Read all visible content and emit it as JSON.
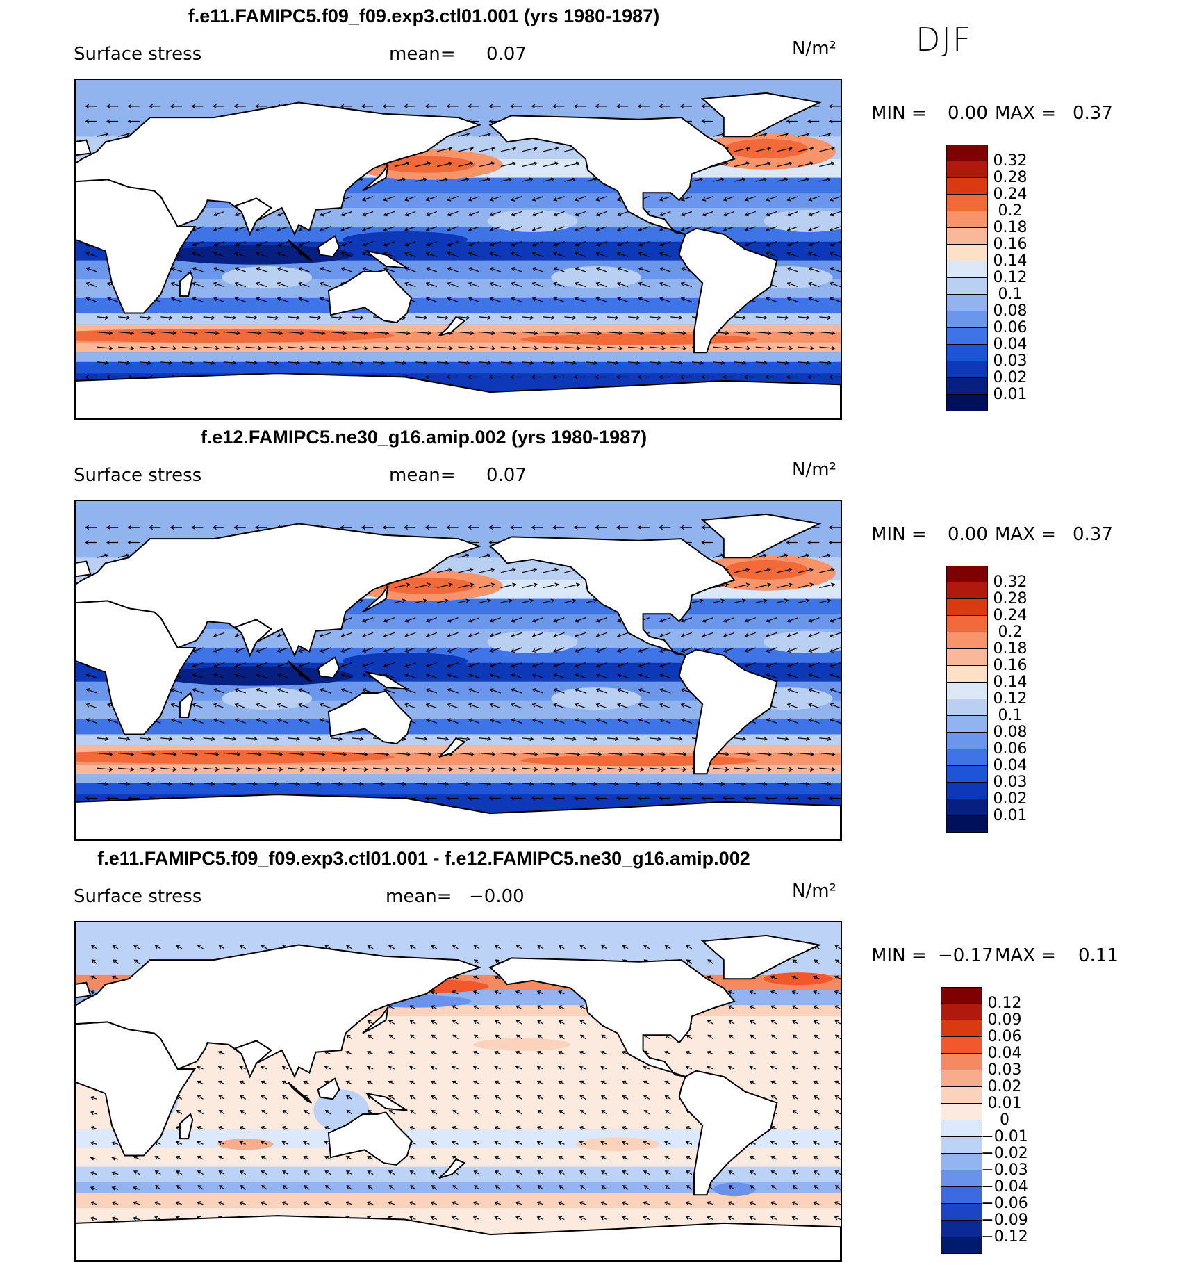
{
  "season": "DJF",
  "units": "N/m²",
  "panels": [
    {
      "title": "f.e11.FAMIPC5.f09_f09.exp3.ctl01.001 (yrs 1980-1987)",
      "variable": "Surface stress",
      "mean_label": "mean=",
      "mean_value": "0.07",
      "min_label": "MIN =",
      "min_value": "0.00",
      "max_label": "MAX =",
      "max_value": "0.37",
      "colorbar_labels": [
        "0.32",
        "0.28",
        "0.24",
        "0.2",
        "0.18",
        "0.16",
        "0.14",
        "0.12",
        "0.1",
        "0.08",
        "0.06",
        "0.04",
        "0.03",
        "0.02",
        "0.01"
      ]
    },
    {
      "title": "f.e12.FAMIPC5.ne30_g16.amip.002 (yrs 1980-1987)",
      "variable": "Surface stress",
      "mean_label": "mean=",
      "mean_value": "0.07",
      "min_label": "MIN =",
      "min_value": "0.00",
      "max_label": "MAX =",
      "max_value": "0.37",
      "colorbar_labels": [
        "0.32",
        "0.28",
        "0.24",
        "0.2",
        "0.18",
        "0.16",
        "0.14",
        "0.12",
        "0.1",
        "0.08",
        "0.06",
        "0.04",
        "0.03",
        "0.02",
        "0.01"
      ]
    },
    {
      "title": "f.e11.FAMIPC5.f09_f09.exp3.ctl01.001 - f.e12.FAMIPC5.ne30_g16.amip.002",
      "variable": "Surface stress",
      "mean_label": "mean=",
      "mean_value": "−0.00",
      "min_label": "MIN =",
      "min_value": "−0.17",
      "max_label": "MAX =",
      "max_value": "0.11",
      "colorbar_labels": [
        "0.12",
        "0.09",
        "0.06",
        "0.04",
        "0.03",
        "0.02",
        "0.01",
        "0",
        "−0.01",
        "−0.02",
        "−0.03",
        "−0.04",
        "−0.06",
        "−0.09",
        "−0.12"
      ]
    }
  ],
  "colors": {
    "magnitude_scale": [
      "#7f0000",
      "#b01a0c",
      "#d93a10",
      "#f26a3a",
      "#f7946a",
      "#fab89a",
      "#fde0c8",
      "#dbe8f8",
      "#b9d0f2",
      "#91b4ee",
      "#6a96ec",
      "#3f74e6",
      "#1e54d8",
      "#0d38b8",
      "#061f80",
      "#00105a"
    ],
    "difference_scale": [
      "#7f0000",
      "#b01a0c",
      "#d93a10",
      "#f2582c",
      "#f58a62",
      "#f7ad8c",
      "#fbd2bb",
      "#fdeadf",
      "#dce8fb",
      "#bcd3f7",
      "#93b4f1",
      "#6b92ea",
      "#3c6ae2",
      "#1b45c4",
      "#0b2a96",
      "#001a6e"
    ],
    "land": "#ffffff",
    "coast": "#000000"
  },
  "chart_data": [
    {
      "type": "heatmap",
      "title": "f.e11.FAMIPC5.f09_f09.exp3.ctl01.001 (yrs 1980-1987)",
      "subtitle": "Surface stress",
      "units": "N/m²",
      "mean": 0.07,
      "min": 0.0,
      "max": 0.37,
      "contour_levels": [
        0.01,
        0.02,
        0.03,
        0.04,
        0.06,
        0.08,
        0.1,
        0.12,
        0.14,
        0.16,
        0.18,
        0.2,
        0.24,
        0.28,
        0.32
      ],
      "overlay": "wind stress vectors",
      "regions": [
        {
          "region": "Southern Ocean westerly belt",
          "approx_value": 0.22
        },
        {
          "region": "North Pacific storm track",
          "approx_value": 0.24
        },
        {
          "region": "North Atlantic storm track",
          "approx_value": 0.26
        },
        {
          "region": "Tropical trade wind belts",
          "approx_value": 0.06
        },
        {
          "region": "Equatorial doldrums",
          "approx_value": 0.02
        }
      ]
    },
    {
      "type": "heatmap",
      "title": "f.e12.FAMIPC5.ne30_g16.amip.002 (yrs 1980-1987)",
      "subtitle": "Surface stress",
      "units": "N/m²",
      "mean": 0.07,
      "min": 0.0,
      "max": 0.37,
      "contour_levels": [
        0.01,
        0.02,
        0.03,
        0.04,
        0.06,
        0.08,
        0.1,
        0.12,
        0.14,
        0.16,
        0.18,
        0.2,
        0.24,
        0.28,
        0.32
      ],
      "overlay": "wind stress vectors",
      "regions": [
        {
          "region": "Southern Ocean westerly belt",
          "approx_value": 0.24
        },
        {
          "region": "North Pacific storm track",
          "approx_value": 0.22
        },
        {
          "region": "North Atlantic storm track",
          "approx_value": 0.24
        },
        {
          "region": "Tropical trade wind belts",
          "approx_value": 0.06
        },
        {
          "region": "Equatorial doldrums",
          "approx_value": 0.02
        }
      ]
    },
    {
      "type": "heatmap",
      "title": "f.e11.FAMIPC5.f09_f09.exp3.ctl01.001 - f.e12.FAMIPC5.ne30_g16.amip.002",
      "subtitle": "Surface stress",
      "units": "N/m²",
      "mean": -0.0,
      "min": -0.17,
      "max": 0.11,
      "contour_levels": [
        -0.12,
        -0.09,
        -0.06,
        -0.04,
        -0.03,
        -0.02,
        -0.01,
        0,
        0.01,
        0.02,
        0.03,
        0.04,
        0.06,
        0.09,
        0.12
      ],
      "overlay": "difference stress vectors",
      "regions": [
        {
          "region": "North Pacific (north of storm track)",
          "approx_value": 0.04
        },
        {
          "region": "North Pacific (south of storm track)",
          "approx_value": -0.04
        },
        {
          "region": "Southern Ocean ~50S",
          "approx_value": -0.02
        },
        {
          "region": "Tropics",
          "approx_value": 0.01
        }
      ]
    }
  ]
}
